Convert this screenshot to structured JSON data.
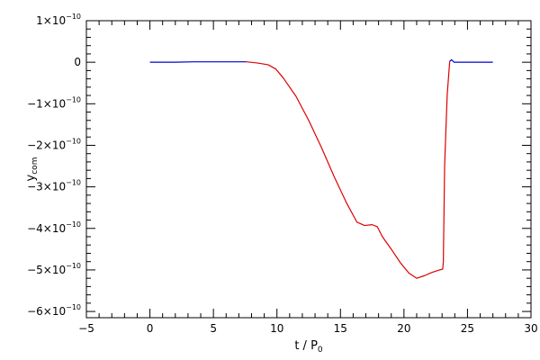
{
  "chart_data": {
    "type": "line",
    "title": "",
    "xlabel": "t / P",
    "xlabel_sub": "0",
    "ylabel": "y",
    "ylabel_sub": "com",
    "xlim": [
      -5,
      30
    ],
    "ylim": [
      -6.15e-10,
      1e-10
    ],
    "x_ticks": [
      -5,
      0,
      5,
      10,
      15,
      20,
      25,
      30
    ],
    "x_tick_labels": [
      "−5",
      "0",
      "5",
      "10",
      "15",
      "20",
      "25",
      "30"
    ],
    "y_ticks": [
      1e-10,
      0,
      -1e-10,
      -2e-10,
      -3e-10,
      -4e-10,
      -5e-10,
      -6e-10
    ],
    "y_tick_labels": [
      {
        "mant": "1×10",
        "exp": "−10"
      },
      {
        "mant": "0",
        "exp": ""
      },
      {
        "mant": "−1×10",
        "exp": "−10"
      },
      {
        "mant": "−2×10",
        "exp": "−10"
      },
      {
        "mant": "−3×10",
        "exp": "−10"
      },
      {
        "mant": "−4×10",
        "exp": "−10"
      },
      {
        "mant": "−5×10",
        "exp": "−10"
      },
      {
        "mant": "−6×10",
        "exp": "−10"
      }
    ],
    "grid": false,
    "series": [
      {
        "color": "#0000cc",
        "x": [
          0,
          2,
          3.5,
          5,
          6.5,
          7.6
        ],
        "y": [
          0,
          0,
          1e-12,
          1e-12,
          1e-12,
          1e-12
        ]
      },
      {
        "color": "#dd0000",
        "x": [
          7.6,
          8.5,
          9.3,
          9.9,
          10.5,
          11.5,
          12.5,
          13.5,
          14.5,
          15.5,
          16.3,
          16.9,
          17.5,
          17.9,
          18.3,
          19.0,
          19.7,
          20.4,
          21.0,
          21.6,
          22.2,
          22.8,
          23.05,
          23.1,
          23.2,
          23.4,
          23.6
        ],
        "y": [
          1e-12,
          -2e-12,
          -6e-12,
          -1.6e-11,
          -3.8e-11,
          -8.2e-11,
          -1.4e-10,
          -2.05e-10,
          -2.75e-10,
          -3.4e-10,
          -3.85e-10,
          -3.93e-10,
          -3.91e-10,
          -3.96e-10,
          -4.2e-10,
          -4.5e-10,
          -4.82e-10,
          -5.08e-10,
          -5.2e-10,
          -5.14e-10,
          -5.06e-10,
          -5e-10,
          -4.98e-10,
          -4.8e-10,
          -2.5e-10,
          -8e-11,
          2e-12
        ]
      },
      {
        "color": "#0000cc",
        "x": [
          23.6,
          23.75,
          23.95,
          25,
          27
        ],
        "y": [
          2e-12,
          6e-12,
          0,
          0,
          0
        ]
      }
    ]
  }
}
